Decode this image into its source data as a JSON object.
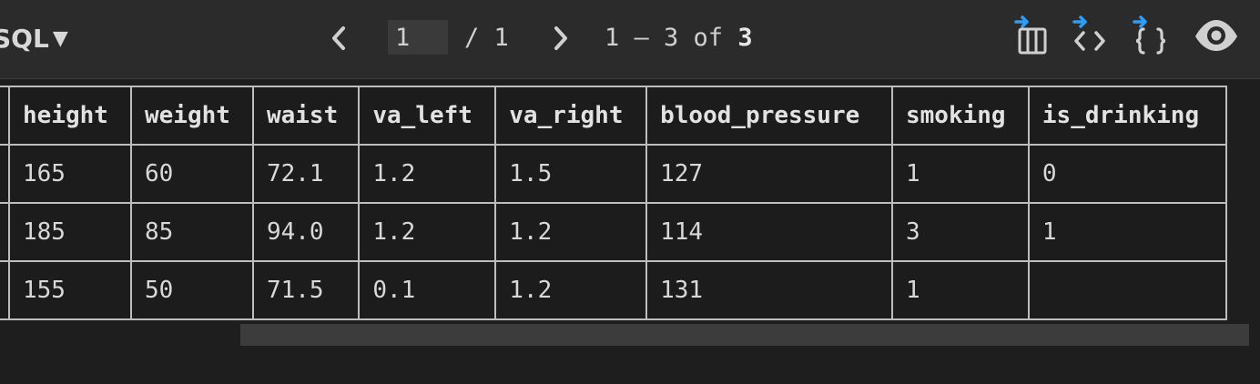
{
  "toolbar": {
    "mode_label": "SQL",
    "mode_caret": "▼",
    "page_input_value": "1",
    "page_total": "/ 1",
    "range_prefix": "1 – 3 of ",
    "range_total": "3",
    "icons": [
      "prev-page-icon",
      "next-page-icon",
      "export-columns-icon",
      "export-code-icon",
      "export-json-icon",
      "preview-eye-icon"
    ],
    "accent_color": "#2f9cf5"
  },
  "table": {
    "columns": [
      "",
      "height",
      "weight",
      "waist",
      "va_left",
      "va_right",
      "blood_pressure",
      "smoking",
      "is_drinking"
    ],
    "rows": [
      [
        "",
        "165",
        "60",
        "72.1",
        "1.2",
        "1.5",
        "127",
        "1",
        "0"
      ],
      [
        "",
        "185",
        "85",
        "94.0",
        "1.2",
        "1.2",
        "114",
        "3",
        "1"
      ],
      [
        "",
        "155",
        "50",
        "71.5",
        "0.1",
        "1.2",
        "131",
        "1",
        ""
      ]
    ]
  }
}
